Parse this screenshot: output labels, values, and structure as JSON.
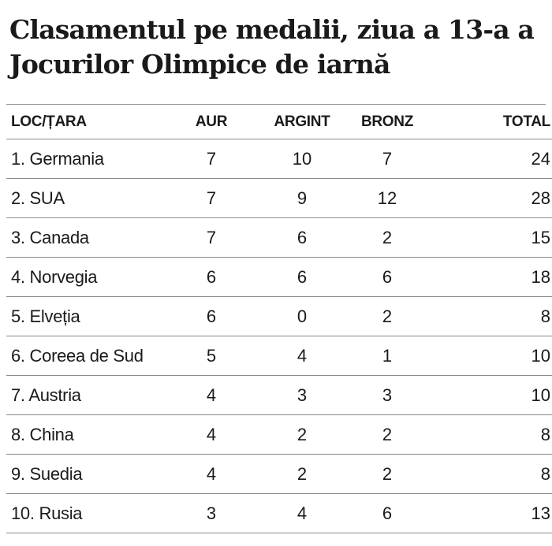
{
  "chart_data": {
    "type": "table",
    "title": "Clasamentul pe medalii, ziua a 13-a a Jocurilor Olimpice de iarnă",
    "columns": [
      "LOC/ȚARA",
      "AUR",
      "ARGINT",
      "BRONZ",
      "TOTAL"
    ],
    "rows": [
      {
        "country": "1. Germania",
        "aur": 7,
        "argint": 10,
        "bronz": 7,
        "total": 24
      },
      {
        "country": "2. SUA",
        "aur": 7,
        "argint": 9,
        "bronz": 12,
        "total": 28
      },
      {
        "country": "3. Canada",
        "aur": 7,
        "argint": 6,
        "bronz": 2,
        "total": 15
      },
      {
        "country": "4. Norvegia",
        "aur": 6,
        "argint": 6,
        "bronz": 6,
        "total": 18
      },
      {
        "country": "5. Elveția",
        "aur": 6,
        "argint": 0,
        "bronz": 2,
        "total": 8
      },
      {
        "country": "6. Coreea de Sud",
        "aur": 5,
        "argint": 4,
        "bronz": 1,
        "total": 10
      },
      {
        "country": "7. Austria",
        "aur": 4,
        "argint": 3,
        "bronz": 3,
        "total": 10
      },
      {
        "country": "8. China",
        "aur": 4,
        "argint": 2,
        "bronz": 2,
        "total": 8
      },
      {
        "country": "9. Suedia",
        "aur": 4,
        "argint": 2,
        "bronz": 2,
        "total": 8
      },
      {
        "country": "10. Rusia",
        "aur": 3,
        "argint": 4,
        "bronz": 6,
        "total": 13
      }
    ]
  }
}
